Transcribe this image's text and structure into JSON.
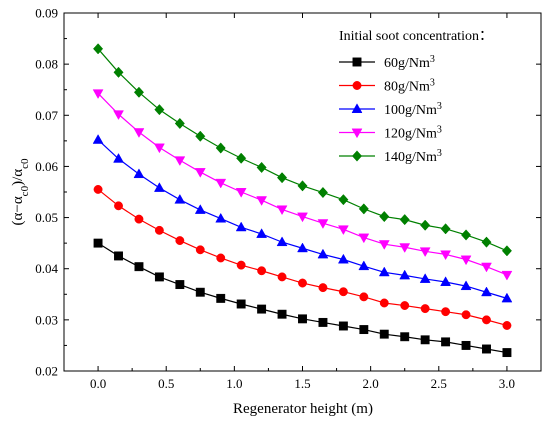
{
  "chart_data": {
    "type": "line",
    "xlabel": "Regenerator height (m)",
    "ylabel": {
      "parts": [
        "(α−α",
        "c0",
        ")/α",
        "c0"
      ]
    },
    "xlim": [
      -0.25,
      3.25
    ],
    "ylim": [
      0.02,
      0.09
    ],
    "xticks": [
      "0.0",
      "0.5",
      "1.0",
      "1.5",
      "2.0",
      "2.5",
      "3.0"
    ],
    "xtick_values": [
      0,
      0.5,
      1.0,
      1.5,
      2.0,
      2.5,
      3.0
    ],
    "yticks": [
      "0.02",
      "0.03",
      "0.04",
      "0.05",
      "0.06",
      "0.07",
      "0.08",
      "0.09"
    ],
    "ytick_values": [
      0.02,
      0.03,
      0.04,
      0.05,
      0.06,
      0.07,
      0.08,
      0.09
    ],
    "grid": false,
    "legend_position": "top-right",
    "legend_title": "Initial soot concentration：",
    "x": [
      0,
      0.15,
      0.3,
      0.45,
      0.6,
      0.75,
      0.9,
      1.05,
      1.2,
      1.35,
      1.5,
      1.65,
      1.8,
      1.95,
      2.1,
      2.25,
      2.4,
      2.55,
      2.7,
      2.85,
      3.0
    ],
    "series": [
      {
        "name": "60g/Nm",
        "unit_sup": "3",
        "color": "#000000",
        "marker": "square",
        "values": [
          0.045,
          0.0425,
          0.0404,
          0.0384,
          0.0369,
          0.0354,
          0.0342,
          0.0331,
          0.0321,
          0.0311,
          0.0302,
          0.0295,
          0.0288,
          0.0281,
          0.0272,
          0.0267,
          0.0261,
          0.0257,
          0.025,
          0.0243,
          0.0236
        ]
      },
      {
        "name": "80g/Nm",
        "unit_sup": "3",
        "color": "#ff0000",
        "marker": "circle",
        "values": [
          0.0555,
          0.0523,
          0.0497,
          0.0475,
          0.0455,
          0.0437,
          0.0421,
          0.0407,
          0.0396,
          0.0384,
          0.0372,
          0.0363,
          0.0355,
          0.0345,
          0.0333,
          0.0328,
          0.0322,
          0.0316,
          0.031,
          0.03,
          0.0289
        ]
      },
      {
        "name": "100g/Nm",
        "unit_sup": "3",
        "color": "#0000ff",
        "marker": "triangle-up",
        "values": [
          0.0652,
          0.0615,
          0.0585,
          0.0558,
          0.0535,
          0.0515,
          0.0498,
          0.0481,
          0.0468,
          0.0452,
          0.044,
          0.0428,
          0.0418,
          0.0405,
          0.0393,
          0.0387,
          0.038,
          0.0374,
          0.0366,
          0.0354,
          0.0342
        ]
      },
      {
        "name": "120g/Nm",
        "unit_sup": "3",
        "color": "#ff00ff",
        "marker": "triangle-down",
        "values": [
          0.0743,
          0.0702,
          0.0667,
          0.0637,
          0.0612,
          0.0589,
          0.0568,
          0.055,
          0.0534,
          0.0516,
          0.0502,
          0.0489,
          0.0477,
          0.0461,
          0.0448,
          0.0442,
          0.0434,
          0.0428,
          0.0418,
          0.0404,
          0.0388
        ]
      },
      {
        "name": "140g/Nm",
        "unit_sup": "3",
        "color": "#008000",
        "marker": "diamond",
        "values": [
          0.083,
          0.0784,
          0.0745,
          0.0711,
          0.0684,
          0.0659,
          0.0636,
          0.0616,
          0.0598,
          0.0578,
          0.0562,
          0.0549,
          0.0535,
          0.0517,
          0.0502,
          0.0496,
          0.0485,
          0.0478,
          0.0466,
          0.0452,
          0.0435
        ]
      }
    ]
  }
}
